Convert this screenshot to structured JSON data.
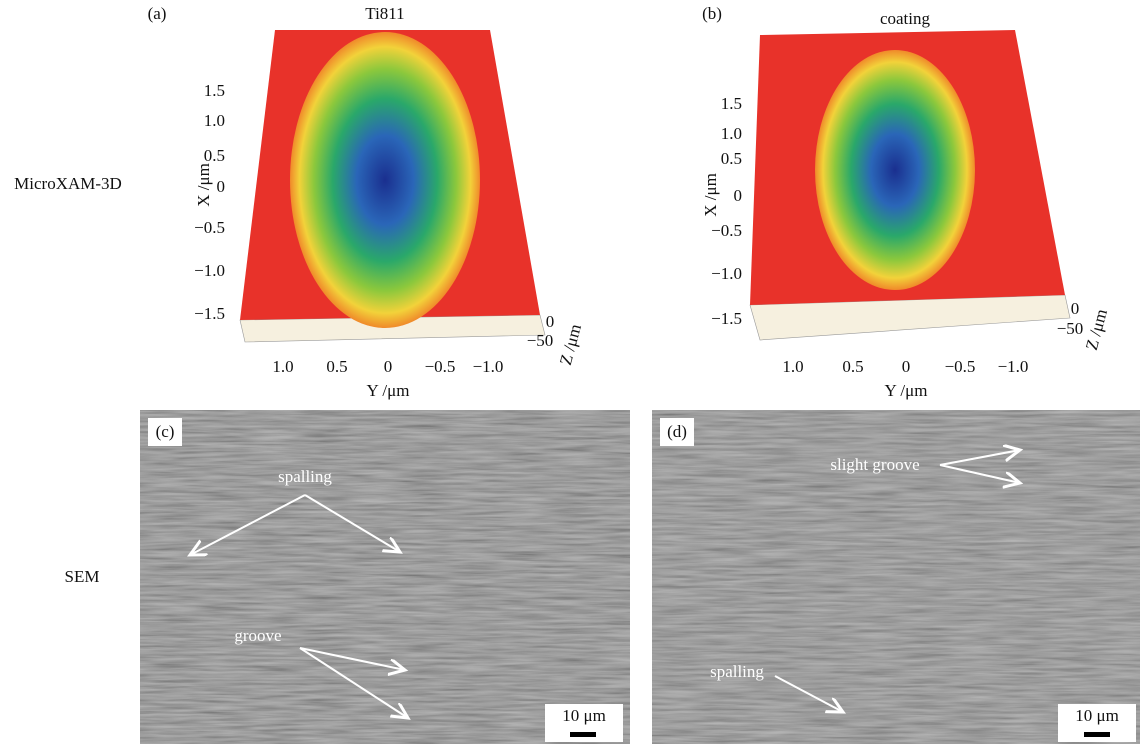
{
  "row_labels": [
    "MicroXAM-3D",
    "SEM"
  ],
  "profiles": [
    {
      "label": "(a)",
      "title": "Ti811",
      "x_axis_label": "X /μm",
      "x_ticks": [
        "1.5",
        "1.0",
        "0.5",
        "0",
        "−0.5",
        "−1.0",
        "−1.5"
      ],
      "y_axis_label": "Y /μm",
      "y_ticks": [
        "1.0",
        "0.5",
        "0",
        "−0.5",
        "−1.0"
      ],
      "z_axis_label": "Z /μm",
      "z_ticks": [
        "0",
        "−50"
      ]
    },
    {
      "label": "(b)",
      "title": "coating",
      "x_axis_label": "X /μm",
      "x_ticks": [
        "1.5",
        "1.0",
        "0.5",
        "0",
        "−0.5",
        "−1.0",
        "−1.5"
      ],
      "y_axis_label": "Y /μm",
      "y_ticks": [
        "1.0",
        "0.5",
        "0",
        "−0.5",
        "−1.0"
      ],
      "z_axis_label": "Z /μm",
      "z_ticks": [
        "0",
        "−50"
      ]
    }
  ],
  "sem": [
    {
      "label": "(c)",
      "annotations": [
        "spalling",
        "groove"
      ],
      "scale_bar": "10 μm"
    },
    {
      "label": "(d)",
      "annotations": [
        "slight groove",
        "spalling"
      ],
      "scale_bar": "10 μm"
    }
  ]
}
